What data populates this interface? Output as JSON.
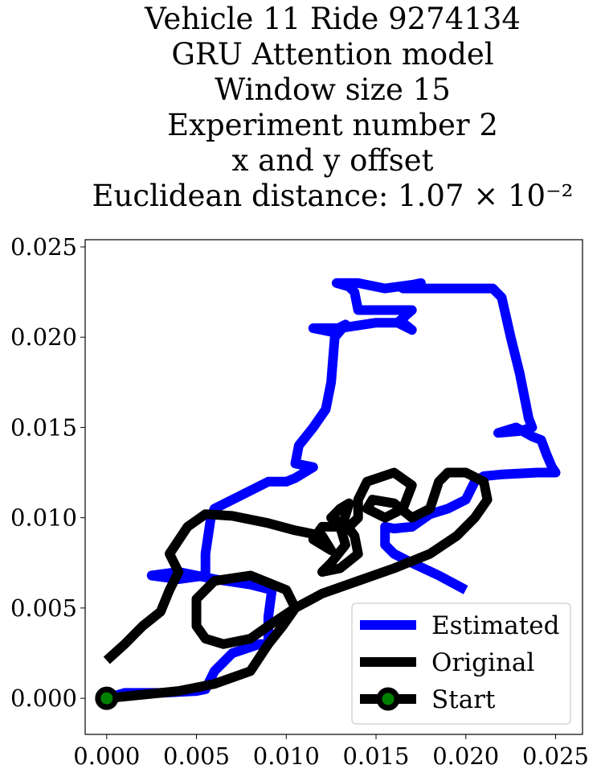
{
  "chart_data": {
    "type": "line",
    "title_lines": [
      "Vehicle 11 Ride 9274134",
      "GRU Attention model",
      "Window size 15",
      "Experiment number 2",
      "x and y offset",
      "Euclidean distance: 1.07 × 10⁻²"
    ],
    "xlabel": "",
    "ylabel": "",
    "xlim": [
      -0.0012,
      0.0265
    ],
    "ylim": [
      -0.002,
      0.0254
    ],
    "xticks": [
      0.0,
      0.005,
      0.01,
      0.015,
      0.02,
      0.025
    ],
    "xtick_labels": [
      "0.000",
      "0.005",
      "0.010",
      "0.015",
      "0.020",
      "0.025"
    ],
    "yticks": [
      0.0,
      0.005,
      0.01,
      0.015,
      0.02,
      0.025
    ],
    "ytick_labels": [
      "0.000",
      "0.005",
      "0.010",
      "0.015",
      "0.020",
      "0.025"
    ],
    "grid": false,
    "legend_position": "lower-right",
    "series": [
      {
        "name": "Estimated",
        "color": "#0000ff",
        "points": [
          [
            0.0,
            0.0
          ],
          [
            0.001,
            0.0003
          ],
          [
            0.003,
            0.0003
          ],
          [
            0.005,
            0.0004
          ],
          [
            0.0055,
            0.0005
          ],
          [
            0.006,
            0.0015
          ],
          [
            0.007,
            0.0025
          ],
          [
            0.0085,
            0.003
          ],
          [
            0.009,
            0.003
          ],
          [
            0.009,
            0.0045
          ],
          [
            0.0092,
            0.006
          ],
          [
            0.008,
            0.0063
          ],
          [
            0.006,
            0.0066
          ],
          [
            0.004,
            0.007
          ],
          [
            0.0025,
            0.0068
          ],
          [
            0.004,
            0.0066
          ],
          [
            0.0055,
            0.0068
          ],
          [
            0.0055,
            0.008
          ],
          [
            0.0058,
            0.01
          ],
          [
            0.006,
            0.0105
          ],
          [
            0.008,
            0.0115
          ],
          [
            0.009,
            0.012
          ],
          [
            0.01,
            0.012
          ],
          [
            0.0105,
            0.0122
          ],
          [
            0.0115,
            0.0128
          ],
          [
            0.0105,
            0.013
          ],
          [
            0.0107,
            0.014
          ],
          [
            0.0115,
            0.015
          ],
          [
            0.0122,
            0.016
          ],
          [
            0.0125,
            0.0175
          ],
          [
            0.0127,
            0.02
          ],
          [
            0.0133,
            0.0207
          ],
          [
            0.0125,
            0.0203
          ],
          [
            0.0115,
            0.0205
          ],
          [
            0.013,
            0.0205
          ],
          [
            0.015,
            0.0208
          ],
          [
            0.0165,
            0.0208
          ],
          [
            0.017,
            0.0204
          ],
          [
            0.0162,
            0.0208
          ],
          [
            0.017,
            0.0215
          ],
          [
            0.015,
            0.0215
          ],
          [
            0.014,
            0.0215
          ],
          [
            0.0138,
            0.0225
          ],
          [
            0.0135,
            0.0228
          ],
          [
            0.0128,
            0.023
          ],
          [
            0.014,
            0.023
          ],
          [
            0.0155,
            0.0227
          ],
          [
            0.017,
            0.0229
          ],
          [
            0.0175,
            0.023
          ],
          [
            0.0165,
            0.0227
          ],
          [
            0.0185,
            0.0227
          ],
          [
            0.02,
            0.0227
          ],
          [
            0.0215,
            0.0227
          ],
          [
            0.022,
            0.0222
          ],
          [
            0.0225,
            0.02
          ],
          [
            0.023,
            0.018
          ],
          [
            0.0235,
            0.0155
          ],
          [
            0.0237,
            0.015
          ],
          [
            0.023,
            0.0148
          ],
          [
            0.0218,
            0.0147
          ],
          [
            0.0228,
            0.015
          ],
          [
            0.0237,
            0.0145
          ],
          [
            0.0242,
            0.0143
          ],
          [
            0.0245,
            0.0135
          ],
          [
            0.0248,
            0.0128
          ],
          [
            0.025,
            0.0125
          ],
          [
            0.024,
            0.0125
          ],
          [
            0.022,
            0.0124
          ],
          [
            0.021,
            0.0123
          ],
          [
            0.0205,
            0.012
          ],
          [
            0.02,
            0.011
          ],
          [
            0.019,
            0.0105
          ],
          [
            0.018,
            0.0102
          ],
          [
            0.017,
            0.0095
          ],
          [
            0.016,
            0.0094
          ],
          [
            0.0155,
            0.0095
          ],
          [
            0.0155,
            0.0085
          ],
          [
            0.016,
            0.008
          ],
          [
            0.017,
            0.0075
          ],
          [
            0.0185,
            0.0068
          ],
          [
            0.02,
            0.006
          ]
        ]
      },
      {
        "name": "Original",
        "color": "#000000",
        "points": [
          [
            0.0,
            0.0021
          ],
          [
            0.001,
            0.003
          ],
          [
            0.002,
            0.004
          ],
          [
            0.003,
            0.0048
          ],
          [
            0.0035,
            0.006
          ],
          [
            0.004,
            0.007
          ],
          [
            0.0035,
            0.008
          ],
          [
            0.0045,
            0.0095
          ],
          [
            0.0055,
            0.0102
          ],
          [
            0.007,
            0.0101
          ],
          [
            0.009,
            0.0097
          ],
          [
            0.0105,
            0.0093
          ],
          [
            0.012,
            0.009
          ],
          [
            0.0125,
            0.0082
          ],
          [
            0.0115,
            0.0088
          ],
          [
            0.012,
            0.0095
          ],
          [
            0.013,
            0.0095
          ],
          [
            0.0133,
            0.0085
          ],
          [
            0.0125,
            0.0075
          ],
          [
            0.012,
            0.007
          ],
          [
            0.013,
            0.0072
          ],
          [
            0.014,
            0.008
          ],
          [
            0.0138,
            0.009
          ],
          [
            0.0132,
            0.0098
          ],
          [
            0.0135,
            0.0108
          ],
          [
            0.013,
            0.0105
          ],
          [
            0.0125,
            0.01
          ],
          [
            0.0135,
            0.0095
          ],
          [
            0.014,
            0.01
          ],
          [
            0.014,
            0.011
          ],
          [
            0.0145,
            0.012
          ],
          [
            0.016,
            0.0125
          ],
          [
            0.017,
            0.0118
          ],
          [
            0.0165,
            0.0105
          ],
          [
            0.0155,
            0.01
          ],
          [
            0.0145,
            0.0105
          ],
          [
            0.0148,
            0.011
          ],
          [
            0.016,
            0.0108
          ],
          [
            0.017,
            0.01
          ],
          [
            0.018,
            0.0105
          ],
          [
            0.0185,
            0.012
          ],
          [
            0.019,
            0.0125
          ],
          [
            0.02,
            0.0125
          ],
          [
            0.021,
            0.012
          ],
          [
            0.0212,
            0.011
          ],
          [
            0.0205,
            0.01
          ],
          [
            0.0195,
            0.009
          ],
          [
            0.018,
            0.008
          ],
          [
            0.016,
            0.0072
          ],
          [
            0.014,
            0.0065
          ],
          [
            0.012,
            0.0058
          ],
          [
            0.0105,
            0.005
          ],
          [
            0.009,
            0.004
          ],
          [
            0.008,
            0.0033
          ],
          [
            0.0065,
            0.003
          ],
          [
            0.0055,
            0.0033
          ],
          [
            0.005,
            0.004
          ],
          [
            0.005,
            0.0055
          ],
          [
            0.006,
            0.0065
          ],
          [
            0.008,
            0.0068
          ],
          [
            0.01,
            0.006
          ],
          [
            0.0105,
            0.005
          ],
          [
            0.0098,
            0.004
          ],
          [
            0.009,
            0.003
          ],
          [
            0.008,
            0.0015
          ],
          [
            0.006,
            0.0008
          ],
          [
            0.004,
            0.0004
          ],
          [
            0.002,
            0.0002
          ],
          [
            0.0,
            0.0
          ]
        ]
      },
      {
        "name": "Start",
        "marker_face_color": "#008000",
        "marker_edge_color": "#000000",
        "point": [
          0.0,
          0.0
        ]
      }
    ]
  }
}
